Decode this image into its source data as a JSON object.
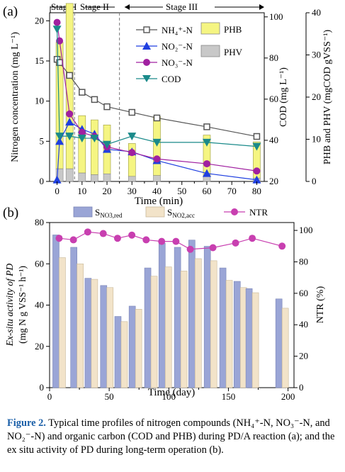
{
  "panel_a": {
    "label": "(a)",
    "stages": [
      "Stage I",
      "Stage II",
      "Stage III"
    ],
    "xlabel": "Time (min)",
    "ylabel_left": "Nitrogen concentration (mg L⁻¹)",
    "ylabel_right1": "COD (mg L⁻¹)",
    "ylabel_right2": "PHB and PHV (mgCOD gVSS⁻¹)",
    "x_ticks": [
      "0",
      "10",
      "20",
      "30",
      "40",
      "50",
      "60",
      "70",
      "80"
    ],
    "y_left_ticks": [
      "0",
      "5",
      "10",
      "15",
      "20"
    ],
    "y_cod_ticks": [
      "20",
      "40",
      "60",
      "80",
      "100"
    ],
    "y_phb_ticks": [
      "0",
      "10",
      "20",
      "30",
      "40"
    ],
    "legend": {
      "nh4": "NH₄⁺-N",
      "no2": "NO₂⁻-N",
      "no3": "NO₃⁻-N",
      "cod": "COD",
      "phb": "PHB",
      "phv": "PHV"
    }
  },
  "panel_b": {
    "label": "(b)",
    "xlabel": "Time (day)",
    "ylabel_left": "Ex-situ activity of PD (mg N g VSS⁻¹ h⁻¹)",
    "ylabel_right": "NTR (%)",
    "x_ticks": [
      "0",
      "50",
      "100",
      "150",
      "200"
    ],
    "y_left_ticks": [
      "0",
      "20",
      "40",
      "60",
      "80"
    ],
    "y_right_ticks": [
      "0",
      "20",
      "40",
      "60",
      "80",
      "100"
    ],
    "legend": {
      "s_no3": "S",
      "s_no3_sub": "NO3,red",
      "s_no2": "S",
      "s_no2_sub": "NO2,acc",
      "ntr": "NTR"
    }
  },
  "caption": {
    "label": "Figure 2.",
    "text": " Typical time profiles of nitrogen compounds (NH₄⁺-N, NO₃⁻-N, and NO₂⁻-N) and organic carbon (COD and PHB) during PD/A reaction (a); and the ex situ activity of PD during long-term operation (b)."
  },
  "colors": {
    "nh4": "#555555",
    "no2": "#1f3fe0",
    "no3": "#a020a0",
    "cod": "#1a8a8a",
    "phb": "#f5f582",
    "phv": "#c8c8c8",
    "s_no3": "#9aa5d6",
    "s_no2": "#f2e3c9",
    "ntr": "#c83fb0",
    "caption": "#1a5fa8"
  },
  "chart_data": [
    {
      "type": "line",
      "panel": "a",
      "x": [
        0,
        1,
        5,
        10,
        15,
        20,
        30,
        40,
        60,
        80
      ],
      "xlim": [
        -3,
        83
      ],
      "series": [
        {
          "name": "NH₄⁺-N",
          "axis": "left",
          "x": [
            0,
            1,
            5,
            10,
            15,
            20,
            30,
            40,
            60,
            80
          ],
          "values": [
            15.2,
            14.8,
            13.2,
            11.1,
            10.2,
            9.3,
            8.6,
            7.9,
            6.8,
            5.6
          ]
        },
        {
          "name": "NO₂⁻-N",
          "axis": "left",
          "x": [
            0,
            1,
            5,
            10,
            15,
            20,
            30,
            40,
            60,
            80
          ],
          "values": [
            0.2,
            5.0,
            7.4,
            6.5,
            5.9,
            4.0,
            3.7,
            2.6,
            1.0,
            0.2
          ]
        },
        {
          "name": "NO₃⁻-N",
          "axis": "left",
          "x": [
            0,
            1,
            5,
            10,
            15,
            20,
            30,
            40,
            60,
            80
          ],
          "values": [
            19.8,
            17.5,
            8.4,
            6.1,
            5.6,
            4.3,
            3.6,
            2.8,
            2.2,
            1.3
          ]
        },
        {
          "name": "COD",
          "axis": "right1",
          "x": [
            0,
            1,
            5,
            10,
            15,
            20,
            30,
            40,
            60,
            80
          ],
          "values": [
            94,
            42,
            42,
            41,
            41,
            38,
            42,
            39,
            39,
            37
          ]
        }
      ],
      "bars": [
        {
          "name": "PHB",
          "axis": "right2",
          "x": [
            1,
            5,
            10,
            15,
            20,
            30,
            40,
            60,
            80
          ],
          "values": [
            30,
            39.2,
            13.6,
            13.0,
            11.6,
            7.8,
            14.0,
            9.8,
            8.6
          ]
        },
        {
          "name": "PHV",
          "axis": "right2",
          "x": [
            1,
            5,
            10,
            15,
            20,
            30,
            40,
            60,
            80
          ],
          "values": [
            3.0,
            3.0,
            2.0,
            1.6,
            1.8,
            1.2,
            1.4,
            1.2,
            0.8
          ]
        }
      ],
      "ylim_left": [
        0,
        21
      ],
      "ylim_right1": [
        20,
        102
      ],
      "ylim_right2": [
        0,
        40
      ],
      "stage_boundaries_min": [
        7,
        25
      ]
    },
    {
      "type": "bar",
      "panel": "b",
      "x_days": [
        8,
        23,
        35,
        48,
        60,
        72,
        85,
        97,
        110,
        122,
        135,
        148,
        160,
        170,
        195
      ],
      "xlim": [
        0,
        205
      ],
      "series": [
        {
          "name": "S NO3,red",
          "axis": "left",
          "values": [
            74,
            68,
            53,
            49.5,
            34.5,
            39.5,
            58,
            70,
            68,
            71.5,
            68.5,
            58,
            51.5,
            48,
            43
          ]
        },
        {
          "name": "S NO2,acc",
          "axis": "left",
          "values": [
            63,
            60,
            52.5,
            48.5,
            32,
            38,
            54,
            58.5,
            56.5,
            62.5,
            61.5,
            52,
            48.5,
            46,
            38.5
          ]
        }
      ],
      "line": {
        "name": "NTR",
        "axis": "right",
        "x": [
          8,
          20,
          32,
          45,
          57,
          69,
          81,
          94,
          106,
          118,
          137,
          156,
          170,
          195
        ],
        "values": [
          95,
          94,
          99,
          98,
          95,
          97,
          94,
          93,
          93,
          88,
          89,
          92,
          95,
          90
        ]
      },
      "ylim_left": [
        0,
        80
      ],
      "ylim_right": [
        0,
        105
      ]
    }
  ]
}
